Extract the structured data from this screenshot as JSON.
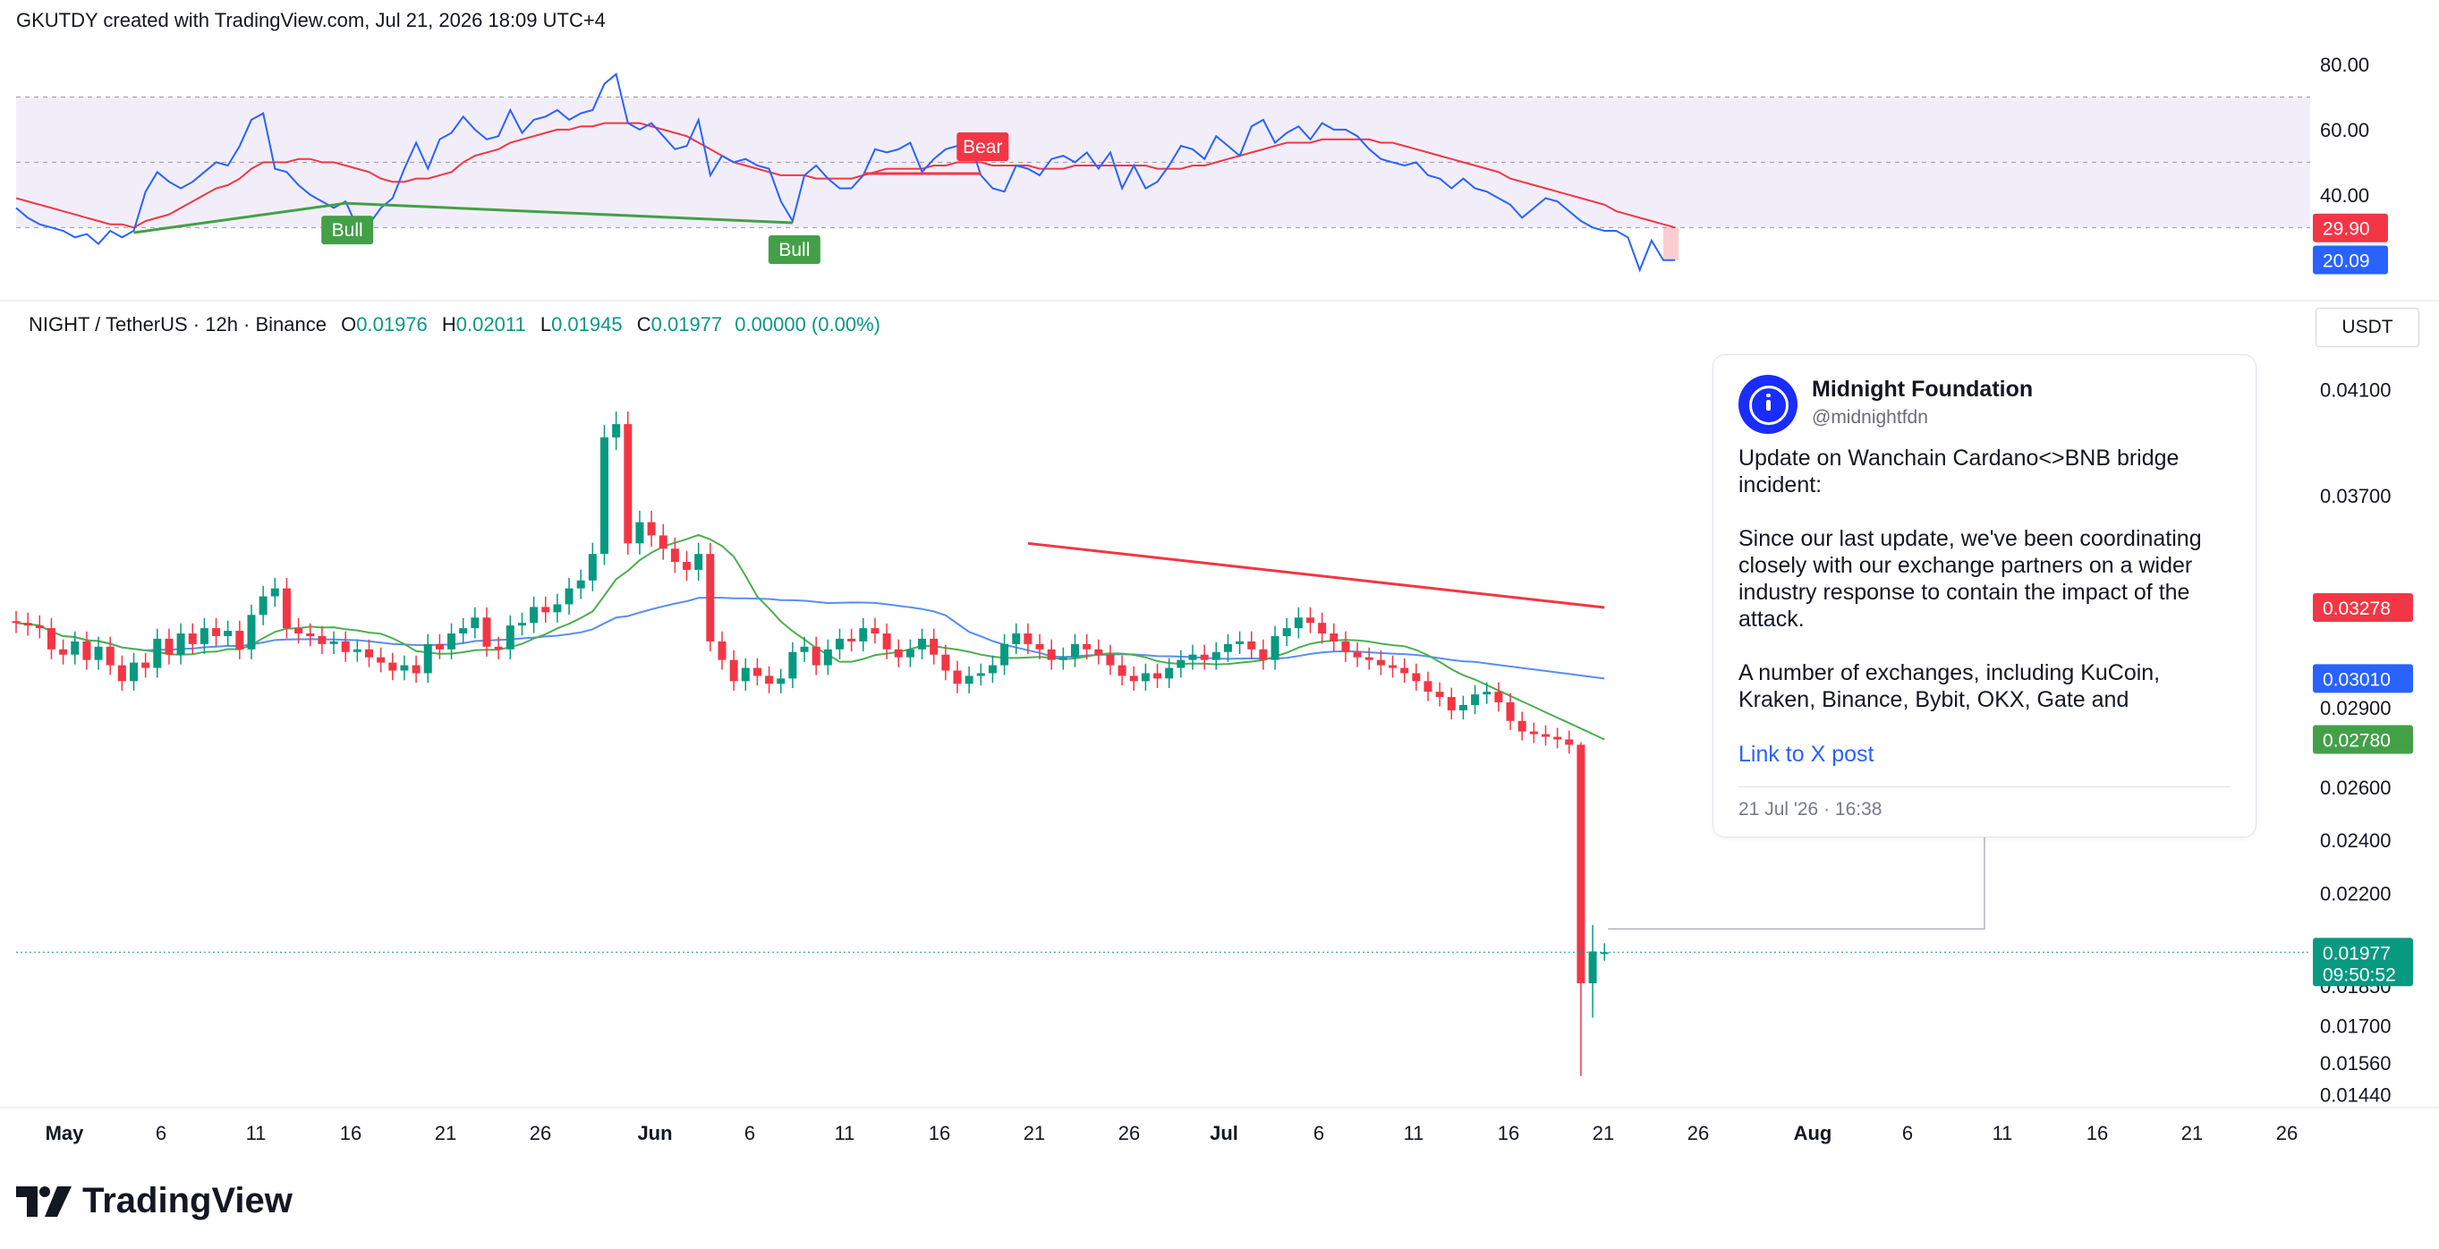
{
  "header": {
    "text": "GKUTDY created with TradingView.com, Jul 21, 2026 18:09 UTC+4"
  },
  "legend": {
    "symbol": "NIGHT / TetherUS · 12h · Binance",
    "o_label": "O",
    "o_value": "0.01976",
    "h_label": "H",
    "h_value": "0.02011",
    "l_label": "L",
    "l_value": "0.01945",
    "c_label": "C",
    "c_value": "0.01977",
    "change": "0.00000 (0.00%)"
  },
  "currency": "USDT",
  "news": {
    "author": "Midnight Foundation",
    "handle": "@midnightfdn",
    "body": [
      "Update on Wanchain Cardano<>BNB bridge incident:",
      "Since our last update, we've been coordinating closely with our exchange partners on a wider industry response to contain the impact of the attack.",
      "A number of exchanges, including KuCoin, Kraken, Binance, Bybit, OKX, Gate and"
    ],
    "link": "Link to X post",
    "time": "21 Jul '26 · 16:38"
  },
  "brand": "TradingView",
  "colors": {
    "up": "#089981",
    "down": "#f23645",
    "rsi": "#2962ff",
    "rsi_ma": "#f23645",
    "ma_blue": "#5b8def",
    "ma_green": "#4caf50",
    "bull": "#43a047",
    "bear": "#f23645"
  },
  "chart_data": [
    {
      "type": "line",
      "subtype": "rsi-oscillator",
      "ylim": [
        12,
        86
      ],
      "y_ticks": [
        "80.00",
        "60.00",
        "40.00"
      ],
      "band": [
        30,
        70
      ],
      "midline": 50,
      "current_labels": [
        {
          "text": "29.90",
          "value": 29.9,
          "color": "#f23645"
        },
        {
          "text": "20.09",
          "value": 20.09,
          "color": "#2962ff"
        }
      ],
      "rsi": [
        36,
        33,
        31,
        30,
        29,
        27,
        28,
        25,
        29,
        27,
        29,
        41,
        47,
        44,
        42,
        44,
        47,
        50,
        49,
        55,
        63,
        65,
        48,
        47,
        43,
        40,
        38,
        36,
        38,
        30,
        31,
        36,
        39,
        48,
        56,
        48,
        57,
        59,
        64,
        60,
        57,
        58,
        66,
        59,
        63,
        64,
        66,
        63,
        65,
        66,
        74,
        77,
        62,
        60,
        62,
        58,
        54,
        55,
        63,
        46,
        52,
        50,
        51,
        49,
        48,
        38,
        32,
        46,
        49,
        45,
        42,
        42,
        46,
        54,
        53,
        54,
        56,
        47,
        51,
        54,
        55,
        57,
        46,
        42,
        41,
        49,
        48,
        46,
        51,
        52,
        50,
        53,
        48,
        53,
        42,
        49,
        42,
        44,
        49,
        55,
        54,
        51,
        58,
        55,
        52,
        61,
        63,
        56,
        59,
        61,
        57,
        62,
        60,
        60,
        58,
        54,
        51,
        50,
        49,
        50,
        46,
        45,
        42,
        45,
        42,
        41,
        39,
        37,
        33,
        36,
        39,
        38,
        35,
        32,
        30,
        29,
        29,
        27,
        17,
        26,
        20,
        20
      ],
      "rsi_ma": [
        39,
        38,
        37,
        36,
        35,
        34,
        33,
        32,
        31,
        31,
        30,
        32,
        33,
        34,
        36,
        38,
        40,
        42,
        43,
        45,
        48,
        50,
        50,
        50,
        51,
        51,
        50,
        50,
        49,
        48,
        47,
        45,
        44,
        44,
        45,
        45,
        46,
        47,
        50,
        52,
        53,
        54,
        56,
        57,
        58,
        59,
        60,
        60,
        61,
        61,
        62,
        62,
        62,
        62,
        61,
        60,
        59,
        58,
        56,
        54,
        52,
        50,
        49,
        48,
        47,
        46,
        46,
        46,
        45,
        45,
        45,
        45,
        46,
        47,
        48,
        48,
        48,
        48,
        49,
        49,
        50,
        50,
        50,
        49,
        49,
        49,
        49,
        48,
        48,
        48,
        49,
        49,
        49,
        49,
        49,
        49,
        49,
        48,
        48,
        48,
        49,
        49,
        50,
        51,
        52,
        53,
        54,
        55,
        56,
        56,
        56,
        57,
        57,
        57,
        57,
        57,
        56,
        56,
        55,
        54,
        53,
        52,
        51,
        50,
        49,
        48,
        47,
        45,
        44,
        43,
        42,
        41,
        40,
        39,
        38,
        37,
        35,
        34,
        33,
        32,
        31,
        30
      ],
      "divergences": [
        {
          "label": "Bull",
          "from_index": 10,
          "to_index": 28,
          "kind": "bull"
        },
        {
          "label": "Bull",
          "from_index": 28,
          "to_index": 66,
          "kind": "bull"
        },
        {
          "label": "Bear",
          "from_index": 72,
          "to_index": 82,
          "kind": "bear"
        }
      ]
    },
    {
      "type": "candlestick",
      "timeframe": "12h",
      "ylim": [
        0.0135,
        0.0422
      ],
      "y_ticks": [
        "0.04100",
        "0.03700",
        "0.02900",
        "0.02600",
        "0.02400",
        "0.02200",
        "0.01850",
        "0.01700",
        "0.01560",
        "0.01440"
      ],
      "price_labels": [
        {
          "text": "0.03278",
          "value": 0.03278,
          "color": "#f23645"
        },
        {
          "text": "0.03010",
          "value": 0.0301,
          "color": "#2962ff"
        },
        {
          "text": "0.02780",
          "value": 0.0278,
          "color": "#43a047"
        },
        {
          "text": "0.01977",
          "value": 0.01977,
          "color": "#089981",
          "sub": "09:50:52"
        }
      ],
      "x_ticks": [
        "May",
        "6",
        "11",
        "16",
        "21",
        "26",
        "Jun",
        "6",
        "11",
        "16",
        "21",
        "26",
        "Jul",
        "6",
        "11",
        "16",
        "21",
        "26",
        "Aug",
        "6",
        "11",
        "16",
        "21",
        "26"
      ],
      "closes": [
        0.0322,
        0.0321,
        0.032,
        0.0312,
        0.031,
        0.0315,
        0.0308,
        0.0313,
        0.0306,
        0.03,
        0.0307,
        0.0305,
        0.0316,
        0.031,
        0.0318,
        0.0314,
        0.032,
        0.0317,
        0.0319,
        0.0312,
        0.0325,
        0.0332,
        0.0335,
        0.032,
        0.0318,
        0.0317,
        0.0314,
        0.0315,
        0.0311,
        0.0312,
        0.0309,
        0.0307,
        0.0304,
        0.0306,
        0.0303,
        0.0314,
        0.0312,
        0.0318,
        0.032,
        0.0324,
        0.0313,
        0.0312,
        0.0321,
        0.0322,
        0.0328,
        0.0326,
        0.0329,
        0.0335,
        0.0338,
        0.0348,
        0.0392,
        0.0397,
        0.0352,
        0.036,
        0.0355,
        0.035,
        0.0345,
        0.0342,
        0.0348,
        0.0315,
        0.0308,
        0.03,
        0.0305,
        0.0302,
        0.0299,
        0.0301,
        0.0311,
        0.0313,
        0.0306,
        0.0312,
        0.0316,
        0.0315,
        0.032,
        0.0318,
        0.0312,
        0.0309,
        0.0312,
        0.0316,
        0.031,
        0.0304,
        0.0299,
        0.0302,
        0.0303,
        0.0306,
        0.0314,
        0.0318,
        0.0314,
        0.0312,
        0.0308,
        0.0309,
        0.0314,
        0.0312,
        0.031,
        0.0306,
        0.0302,
        0.03,
        0.0303,
        0.0301,
        0.0305,
        0.0308,
        0.031,
        0.0308,
        0.0311,
        0.0314,
        0.0315,
        0.0312,
        0.0308,
        0.0317,
        0.032,
        0.0324,
        0.0322,
        0.0318,
        0.0315,
        0.0311,
        0.0309,
        0.0308,
        0.0306,
        0.0305,
        0.0303,
        0.03,
        0.0296,
        0.0294,
        0.0289,
        0.0291,
        0.0295,
        0.0296,
        0.0292,
        0.0285,
        0.0281,
        0.028,
        0.0279,
        0.0278,
        0.0276,
        0.0198,
        0.0198,
        0.0198
      ],
      "moving_averages": [
        {
          "name": "MA blue",
          "color": "#5b8def",
          "last": 0.0301
        },
        {
          "name": "MA green",
          "color": "#4caf50",
          "last": 0.0278
        }
      ],
      "trendline": {
        "from_price": 0.0352,
        "to_price": 0.03278,
        "color": "#f23645"
      },
      "current_price": 0.01977,
      "last_candle": {
        "o": 0.01976,
        "h": 0.02011,
        "l": 0.01945,
        "c": 0.01977
      }
    }
  ]
}
